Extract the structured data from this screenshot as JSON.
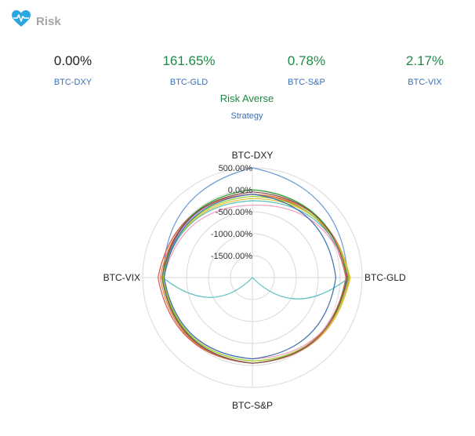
{
  "header": {
    "title": "Risk",
    "icon": "heart-pulse-icon",
    "icon_color": "#2aa7e0"
  },
  "metrics": [
    {
      "value": "0.00%",
      "label": "BTC-DXY",
      "color": "#222222"
    },
    {
      "value": "161.65%",
      "label": "BTC-GLD",
      "color": "#1e8a45"
    },
    {
      "value": "0.78%",
      "label": "BTC-S&P",
      "color": "#1e8a45"
    },
    {
      "value": "2.17%",
      "label": "BTC-VIX",
      "color": "#1e8a45"
    }
  ],
  "strategy": {
    "name": "Risk Averse",
    "label": "Strategy"
  },
  "chart_data": {
    "type": "radar",
    "axes": [
      "BTC-DXY",
      "BTC-GLD",
      "BTC-S&P",
      "BTC-VIX"
    ],
    "radial_ticks": [
      "500.00%",
      "0.00%",
      "-500.00%",
      "-1000.00%",
      "-1500.00%"
    ],
    "rmin": -2000,
    "rmax": 500,
    "grid": true,
    "series": [
      {
        "color": "#6c9bd6",
        "values": [
          500,
          170,
          -50,
          30
        ]
      },
      {
        "color": "#d9534f",
        "values": [
          -100,
          130,
          -50,
          150
        ]
      },
      {
        "color": "#e8823a",
        "values": [
          -100,
          220,
          -50,
          100
        ]
      },
      {
        "color": "#9b59b6",
        "values": [
          -50,
          180,
          -50,
          30
        ]
      },
      {
        "color": "#2ca02c",
        "values": [
          0,
          150,
          -50,
          40
        ]
      },
      {
        "color": "#e6c229",
        "values": [
          -200,
          230,
          -100,
          30
        ]
      },
      {
        "color": "#f0a0c0",
        "values": [
          -350,
          200,
          -150,
          20
        ]
      },
      {
        "color": "#5bc0be",
        "values": [
          -250,
          200,
          -2000,
          40
        ]
      },
      {
        "color": "#9acd32",
        "values": [
          -150,
          200,
          -100,
          30
        ]
      },
      {
        "color": "#3a6fb0",
        "values": [
          -100,
          -100,
          -150,
          10
        ]
      },
      {
        "color": "#8c564b",
        "values": [
          -50,
          160,
          -50,
          60
        ]
      }
    ]
  }
}
